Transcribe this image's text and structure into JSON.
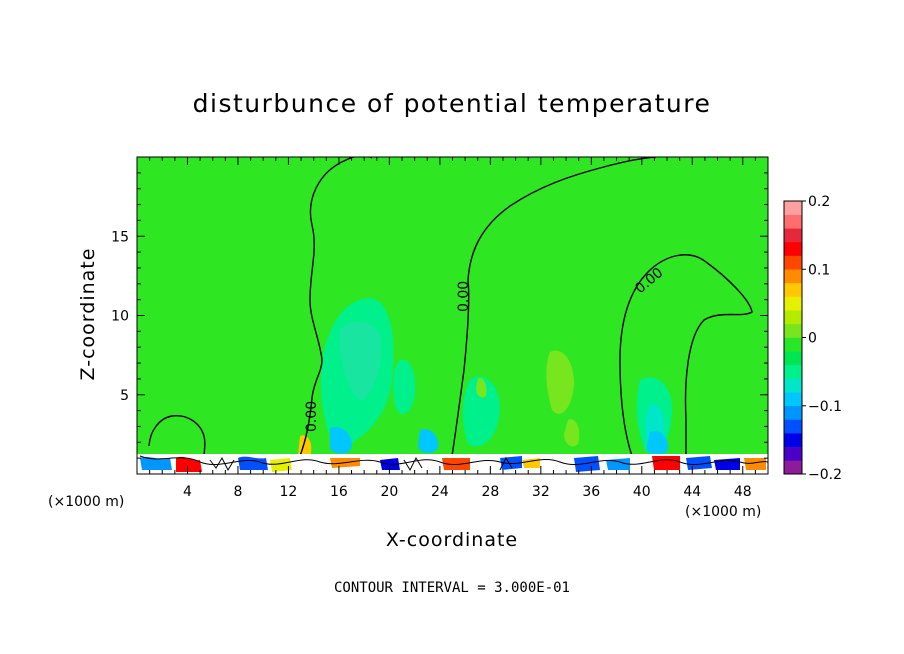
{
  "chart_data": {
    "type": "heatmap",
    "title": "disturbunce of potential temperature",
    "xlabel": "X-coordinate",
    "ylabel": "Z-coordinate",
    "x_unit_left": "(×1000 m)",
    "x_unit_right": "(×1000 m)",
    "xlim": [
      0,
      50
    ],
    "ylim": [
      0,
      20
    ],
    "x_ticks": [
      4,
      8,
      12,
      16,
      20,
      24,
      28,
      32,
      36,
      40,
      44,
      48
    ],
    "y_ticks": [
      5,
      10,
      15
    ],
    "colorbar": {
      "range": [
        -0.2,
        0.2
      ],
      "tick_labels": [
        "0.2",
        "0.1",
        "0",
        "−0.1",
        "−0.2"
      ],
      "tick_values": [
        0.2,
        0.1,
        0,
        -0.1,
        -0.2
      ],
      "colors": [
        "#8e1a9c",
        "#4b00c8",
        "#0000e8",
        "#0050ff",
        "#0096ff",
        "#00c8ff",
        "#00e6c8",
        "#00f08c",
        "#00e650",
        "#28e628",
        "#78e61e",
        "#b4ec00",
        "#e6f000",
        "#ffc800",
        "#ff8c00",
        "#ff4600",
        "#ff0000",
        "#e6283c",
        "#ff6e6e",
        "#ffa0a0"
      ]
    },
    "contour_labels": [
      "0.00",
      "0.00",
      "0.00"
    ],
    "contour_interval_text": "CONTOUR INTERVAL =  3.000E-01",
    "background_color": "#2ee621"
  }
}
